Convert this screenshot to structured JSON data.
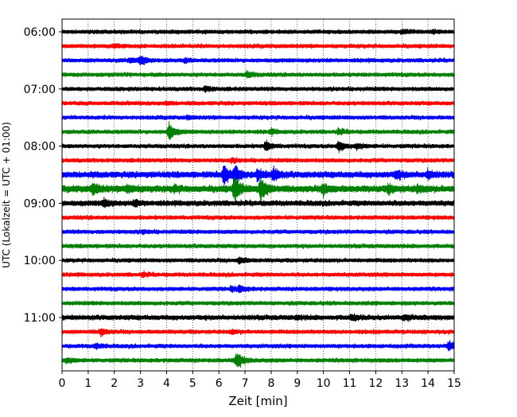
{
  "chart_data": {
    "type": "line",
    "subtype": "seismic-helicorder",
    "xlabel": "Zeit  [min]",
    "ylabel": "UTC (Lokalzeit = UTC + 01:00)",
    "xlim": [
      0,
      15
    ],
    "x_ticks": [
      0,
      1,
      2,
      3,
      4,
      5,
      6,
      7,
      8,
      9,
      10,
      11,
      12,
      13,
      14,
      15
    ],
    "x_tick_labels": [
      "0",
      "1",
      "2",
      "3",
      "4",
      "5",
      "6",
      "7",
      "8",
      "9",
      "10",
      "11",
      "12",
      "13",
      "14",
      "15"
    ],
    "grid": "vertical-dotted",
    "row_minutes": 15,
    "row_colors": [
      "#000000",
      "#ff0000",
      "#0000ff",
      "#008000"
    ],
    "y_tick_labels": [
      {
        "label": "06:00",
        "row": 0
      },
      {
        "label": "07:00",
        "row": 4
      },
      {
        "label": "08:00",
        "row": 8
      },
      {
        "label": "09:00",
        "row": 12
      },
      {
        "label": "10:00",
        "row": 16
      },
      {
        "label": "11:00",
        "row": 20
      }
    ],
    "rows": [
      {
        "start": "06:00",
        "color": "#000000",
        "base_amplitude": 1.0,
        "events": [
          {
            "t": 13.0,
            "amp": 1.6
          },
          {
            "t": 14.2,
            "amp": 1.5
          }
        ]
      },
      {
        "start": "06:15",
        "color": "#ff0000",
        "base_amplitude": 1.0,
        "events": [
          {
            "t": 2.0,
            "amp": 1.8
          }
        ]
      },
      {
        "start": "06:30",
        "color": "#0000ff",
        "base_amplitude": 1.0,
        "events": [
          {
            "t": 3.0,
            "amp": 3.0
          },
          {
            "t": 2.6,
            "amp": 2.0
          },
          {
            "t": 4.7,
            "amp": 1.6
          }
        ]
      },
      {
        "start": "06:45",
        "color": "#008000",
        "base_amplitude": 1.0,
        "events": [
          {
            "t": 7.1,
            "amp": 2.2
          }
        ]
      },
      {
        "start": "07:00",
        "color": "#000000",
        "base_amplitude": 1.0,
        "events": [
          {
            "t": 5.5,
            "amp": 2.0
          }
        ]
      },
      {
        "start": "07:15",
        "color": "#ff0000",
        "base_amplitude": 1.0,
        "events": [
          {
            "t": 4.0,
            "amp": 1.5
          }
        ]
      },
      {
        "start": "07:30",
        "color": "#0000ff",
        "base_amplitude": 1.0,
        "events": [
          {
            "t": 4.8,
            "amp": 1.5
          }
        ]
      },
      {
        "start": "07:45",
        "color": "#008000",
        "base_amplitude": 1.0,
        "events": [
          {
            "t": 4.1,
            "amp": 4.5
          },
          {
            "t": 8.0,
            "amp": 1.8
          },
          {
            "t": 10.6,
            "amp": 2.0
          }
        ]
      },
      {
        "start": "08:00",
        "color": "#000000",
        "base_amplitude": 1.0,
        "events": [
          {
            "t": 7.8,
            "amp": 2.8
          },
          {
            "t": 10.6,
            "amp": 3.2
          },
          {
            "t": 11.3,
            "amp": 2.0
          }
        ]
      },
      {
        "start": "08:15",
        "color": "#ff0000",
        "base_amplitude": 1.0,
        "events": [
          {
            "t": 6.5,
            "amp": 1.6
          }
        ]
      },
      {
        "start": "08:30",
        "color": "#0000ff",
        "base_amplitude": 1.5,
        "events": [
          {
            "t": 6.2,
            "amp": 5.0
          },
          {
            "t": 6.6,
            "amp": 4.5
          },
          {
            "t": 7.5,
            "amp": 3.0
          },
          {
            "t": 8.1,
            "amp": 3.5
          },
          {
            "t": 12.8,
            "amp": 2.5
          },
          {
            "t": 14.0,
            "amp": 2.5
          }
        ]
      },
      {
        "start": "08:45",
        "color": "#008000",
        "base_amplitude": 1.6,
        "events": [
          {
            "t": 1.2,
            "amp": 3.0
          },
          {
            "t": 2.5,
            "amp": 2.5
          },
          {
            "t": 4.3,
            "amp": 2.0
          },
          {
            "t": 6.6,
            "amp": 6.0
          },
          {
            "t": 7.6,
            "amp": 6.0
          },
          {
            "t": 10.0,
            "amp": 3.0
          },
          {
            "t": 12.5,
            "amp": 2.5
          },
          {
            "t": 13.6,
            "amp": 2.0
          }
        ]
      },
      {
        "start": "09:00",
        "color": "#000000",
        "base_amplitude": 1.3,
        "events": [
          {
            "t": 1.6,
            "amp": 2.5
          },
          {
            "t": 2.8,
            "amp": 2.0
          }
        ]
      },
      {
        "start": "09:15",
        "color": "#ff0000",
        "base_amplitude": 1.0,
        "events": []
      },
      {
        "start": "09:30",
        "color": "#0000ff",
        "base_amplitude": 1.0,
        "events": [
          {
            "t": 3.1,
            "amp": 1.5
          }
        ]
      },
      {
        "start": "09:45",
        "color": "#008000",
        "base_amplitude": 1.0,
        "events": []
      },
      {
        "start": "10:00",
        "color": "#000000",
        "base_amplitude": 1.0,
        "events": [
          {
            "t": 6.8,
            "amp": 2.3
          }
        ]
      },
      {
        "start": "10:15",
        "color": "#ff0000",
        "base_amplitude": 1.0,
        "events": [
          {
            "t": 3.1,
            "amp": 1.7
          }
        ]
      },
      {
        "start": "10:30",
        "color": "#0000ff",
        "base_amplitude": 1.0,
        "events": [
          {
            "t": 6.8,
            "amp": 2.2
          },
          {
            "t": 6.5,
            "amp": 1.8
          }
        ]
      },
      {
        "start": "10:45",
        "color": "#008000",
        "base_amplitude": 1.0,
        "events": []
      },
      {
        "start": "11:00",
        "color": "#000000",
        "base_amplitude": 1.2,
        "events": [
          {
            "t": 11.1,
            "amp": 2.0
          },
          {
            "t": 13.1,
            "amp": 2.0
          },
          {
            "t": 9.0,
            "amp": 1.5
          }
        ]
      },
      {
        "start": "11:15",
        "color": "#ff0000",
        "base_amplitude": 1.0,
        "events": [
          {
            "t": 1.5,
            "amp": 2.4
          },
          {
            "t": 6.5,
            "amp": 1.6
          }
        ]
      },
      {
        "start": "11:30",
        "color": "#0000ff",
        "base_amplitude": 1.0,
        "events": [
          {
            "t": 1.3,
            "amp": 2.0
          },
          {
            "t": 14.8,
            "amp": 3.0
          }
        ]
      },
      {
        "start": "11:45",
        "color": "#008000",
        "base_amplitude": 1.0,
        "events": [
          {
            "t": 6.7,
            "amp": 4.5
          },
          {
            "t": 0.2,
            "amp": 2.0
          }
        ]
      }
    ]
  }
}
